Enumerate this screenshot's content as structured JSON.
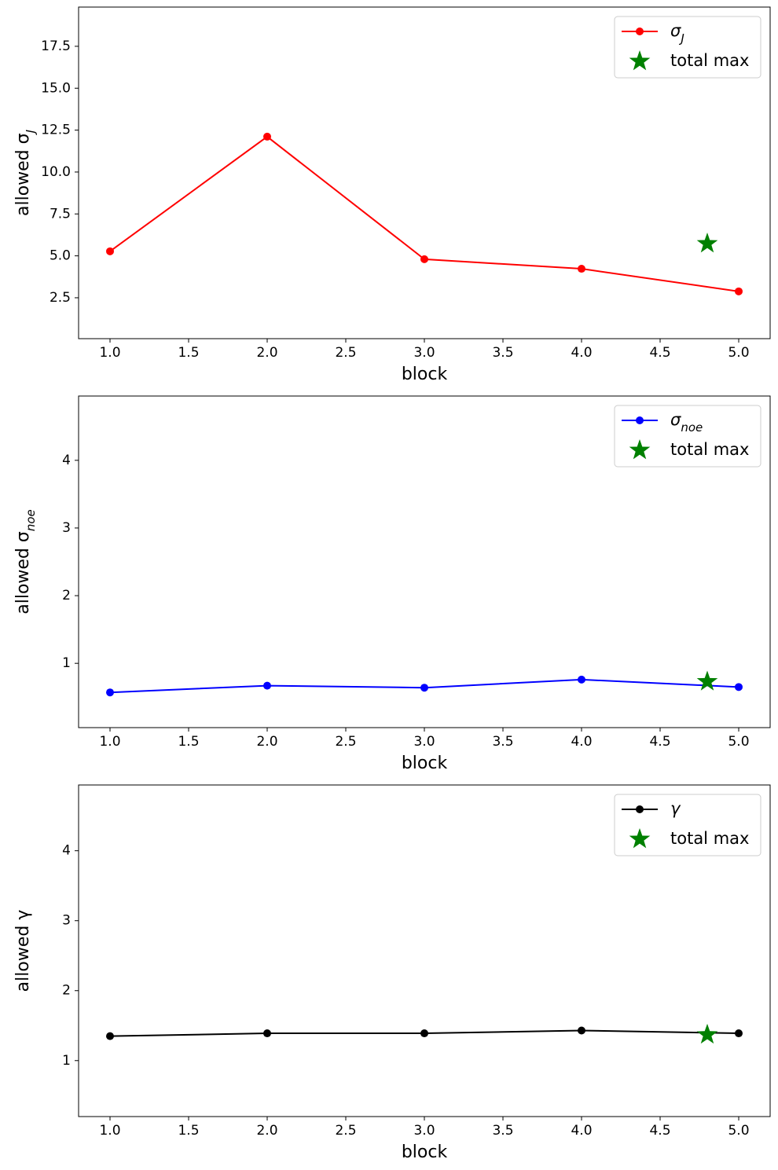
{
  "chart_data": [
    {
      "type": "line",
      "xlabel": "block",
      "ylabel": {
        "text": "allowed σ",
        "sub": "J"
      },
      "xlim": [
        0.8,
        5.2
      ],
      "xticks": [
        {
          "value": 1,
          "label": "1.0"
        },
        {
          "value": 1.5,
          "label": "1.5"
        },
        {
          "value": 2,
          "label": "2.0"
        },
        {
          "value": 2.5,
          "label": "2.5"
        },
        {
          "value": 3,
          "label": "3.0"
        },
        {
          "value": 3.5,
          "label": "3.5"
        },
        {
          "value": 4,
          "label": "4.0"
        },
        {
          "value": 4.5,
          "label": "4.5"
        },
        {
          "value": 5,
          "label": "5.0"
        }
      ],
      "ylim": [
        0.06,
        19.84
      ],
      "yticks": [
        2.5,
        {
          "value": 5,
          "label": "5.0"
        },
        7.5,
        {
          "value": 10,
          "label": "10.0"
        },
        12.5,
        {
          "value": 15,
          "label": "15.0"
        },
        17.5
      ],
      "grid": false,
      "legend": "upper right",
      "series": [
        {
          "name": {
            "text": "σ",
            "sub": "J"
          },
          "color": "#ff0000",
          "marker": "circle",
          "x": [
            1,
            2,
            3,
            4,
            5
          ],
          "values": [
            5.27,
            12.11,
            4.8,
            4.23,
            2.88
          ]
        },
        {
          "name": {
            "text": "total max"
          },
          "color": "#008000",
          "marker": "star",
          "x": [
            4.8
          ],
          "values": [
            5.73
          ]
        }
      ]
    },
    {
      "type": "line",
      "xlabel": "block",
      "ylabel": {
        "text": "allowed σ",
        "sub": "noe"
      },
      "xlim": [
        0.8,
        5.2
      ],
      "xticks": [
        {
          "value": 1,
          "label": "1.0"
        },
        {
          "value": 1.5,
          "label": "1.5"
        },
        {
          "value": 2,
          "label": "2.0"
        },
        {
          "value": 2.5,
          "label": "2.5"
        },
        {
          "value": 3,
          "label": "3.0"
        },
        {
          "value": 3.5,
          "label": "3.5"
        },
        {
          "value": 4,
          "label": "4.0"
        },
        {
          "value": 4.5,
          "label": "4.5"
        },
        {
          "value": 5,
          "label": "5.0"
        }
      ],
      "ylim": [
        0.05,
        4.95
      ],
      "yticks": [
        1,
        2,
        3,
        4
      ],
      "grid": false,
      "legend": "upper right",
      "series": [
        {
          "name": {
            "text": "σ",
            "sub": "noe"
          },
          "color": "#0000ff",
          "marker": "circle",
          "x": [
            1,
            2,
            3,
            4,
            5
          ],
          "values": [
            0.57,
            0.67,
            0.64,
            0.76,
            0.65
          ]
        },
        {
          "name": {
            "text": "total max"
          },
          "color": "#008000",
          "marker": "star",
          "x": [
            4.8
          ],
          "values": [
            0.73
          ]
        }
      ]
    },
    {
      "type": "line",
      "xlabel": "block",
      "ylabel": {
        "text": "allowed γ"
      },
      "xlim": [
        0.8,
        5.2
      ],
      "xticks": [
        {
          "value": 1,
          "label": "1.0"
        },
        {
          "value": 1.5,
          "label": "1.5"
        },
        {
          "value": 2,
          "label": "2.0"
        },
        {
          "value": 2.5,
          "label": "2.5"
        },
        {
          "value": 3,
          "label": "3.0"
        },
        {
          "value": 3.5,
          "label": "3.5"
        },
        {
          "value": 4,
          "label": "4.0"
        },
        {
          "value": 4.5,
          "label": "4.5"
        },
        {
          "value": 5,
          "label": "5.0"
        }
      ],
      "ylim": [
        0.2,
        4.94
      ],
      "yticks": [
        1,
        2,
        3,
        4
      ],
      "grid": false,
      "legend": "upper right",
      "series": [
        {
          "name": {
            "text": "γ"
          },
          "color": "#000000",
          "marker": "circle",
          "x": [
            1,
            2,
            3,
            4,
            5
          ],
          "values": [
            1.35,
            1.39,
            1.39,
            1.43,
            1.39
          ]
        },
        {
          "name": {
            "text": "total max"
          },
          "color": "#008000",
          "marker": "star",
          "x": [
            4.8
          ],
          "values": [
            1.37
          ]
        }
      ]
    }
  ]
}
